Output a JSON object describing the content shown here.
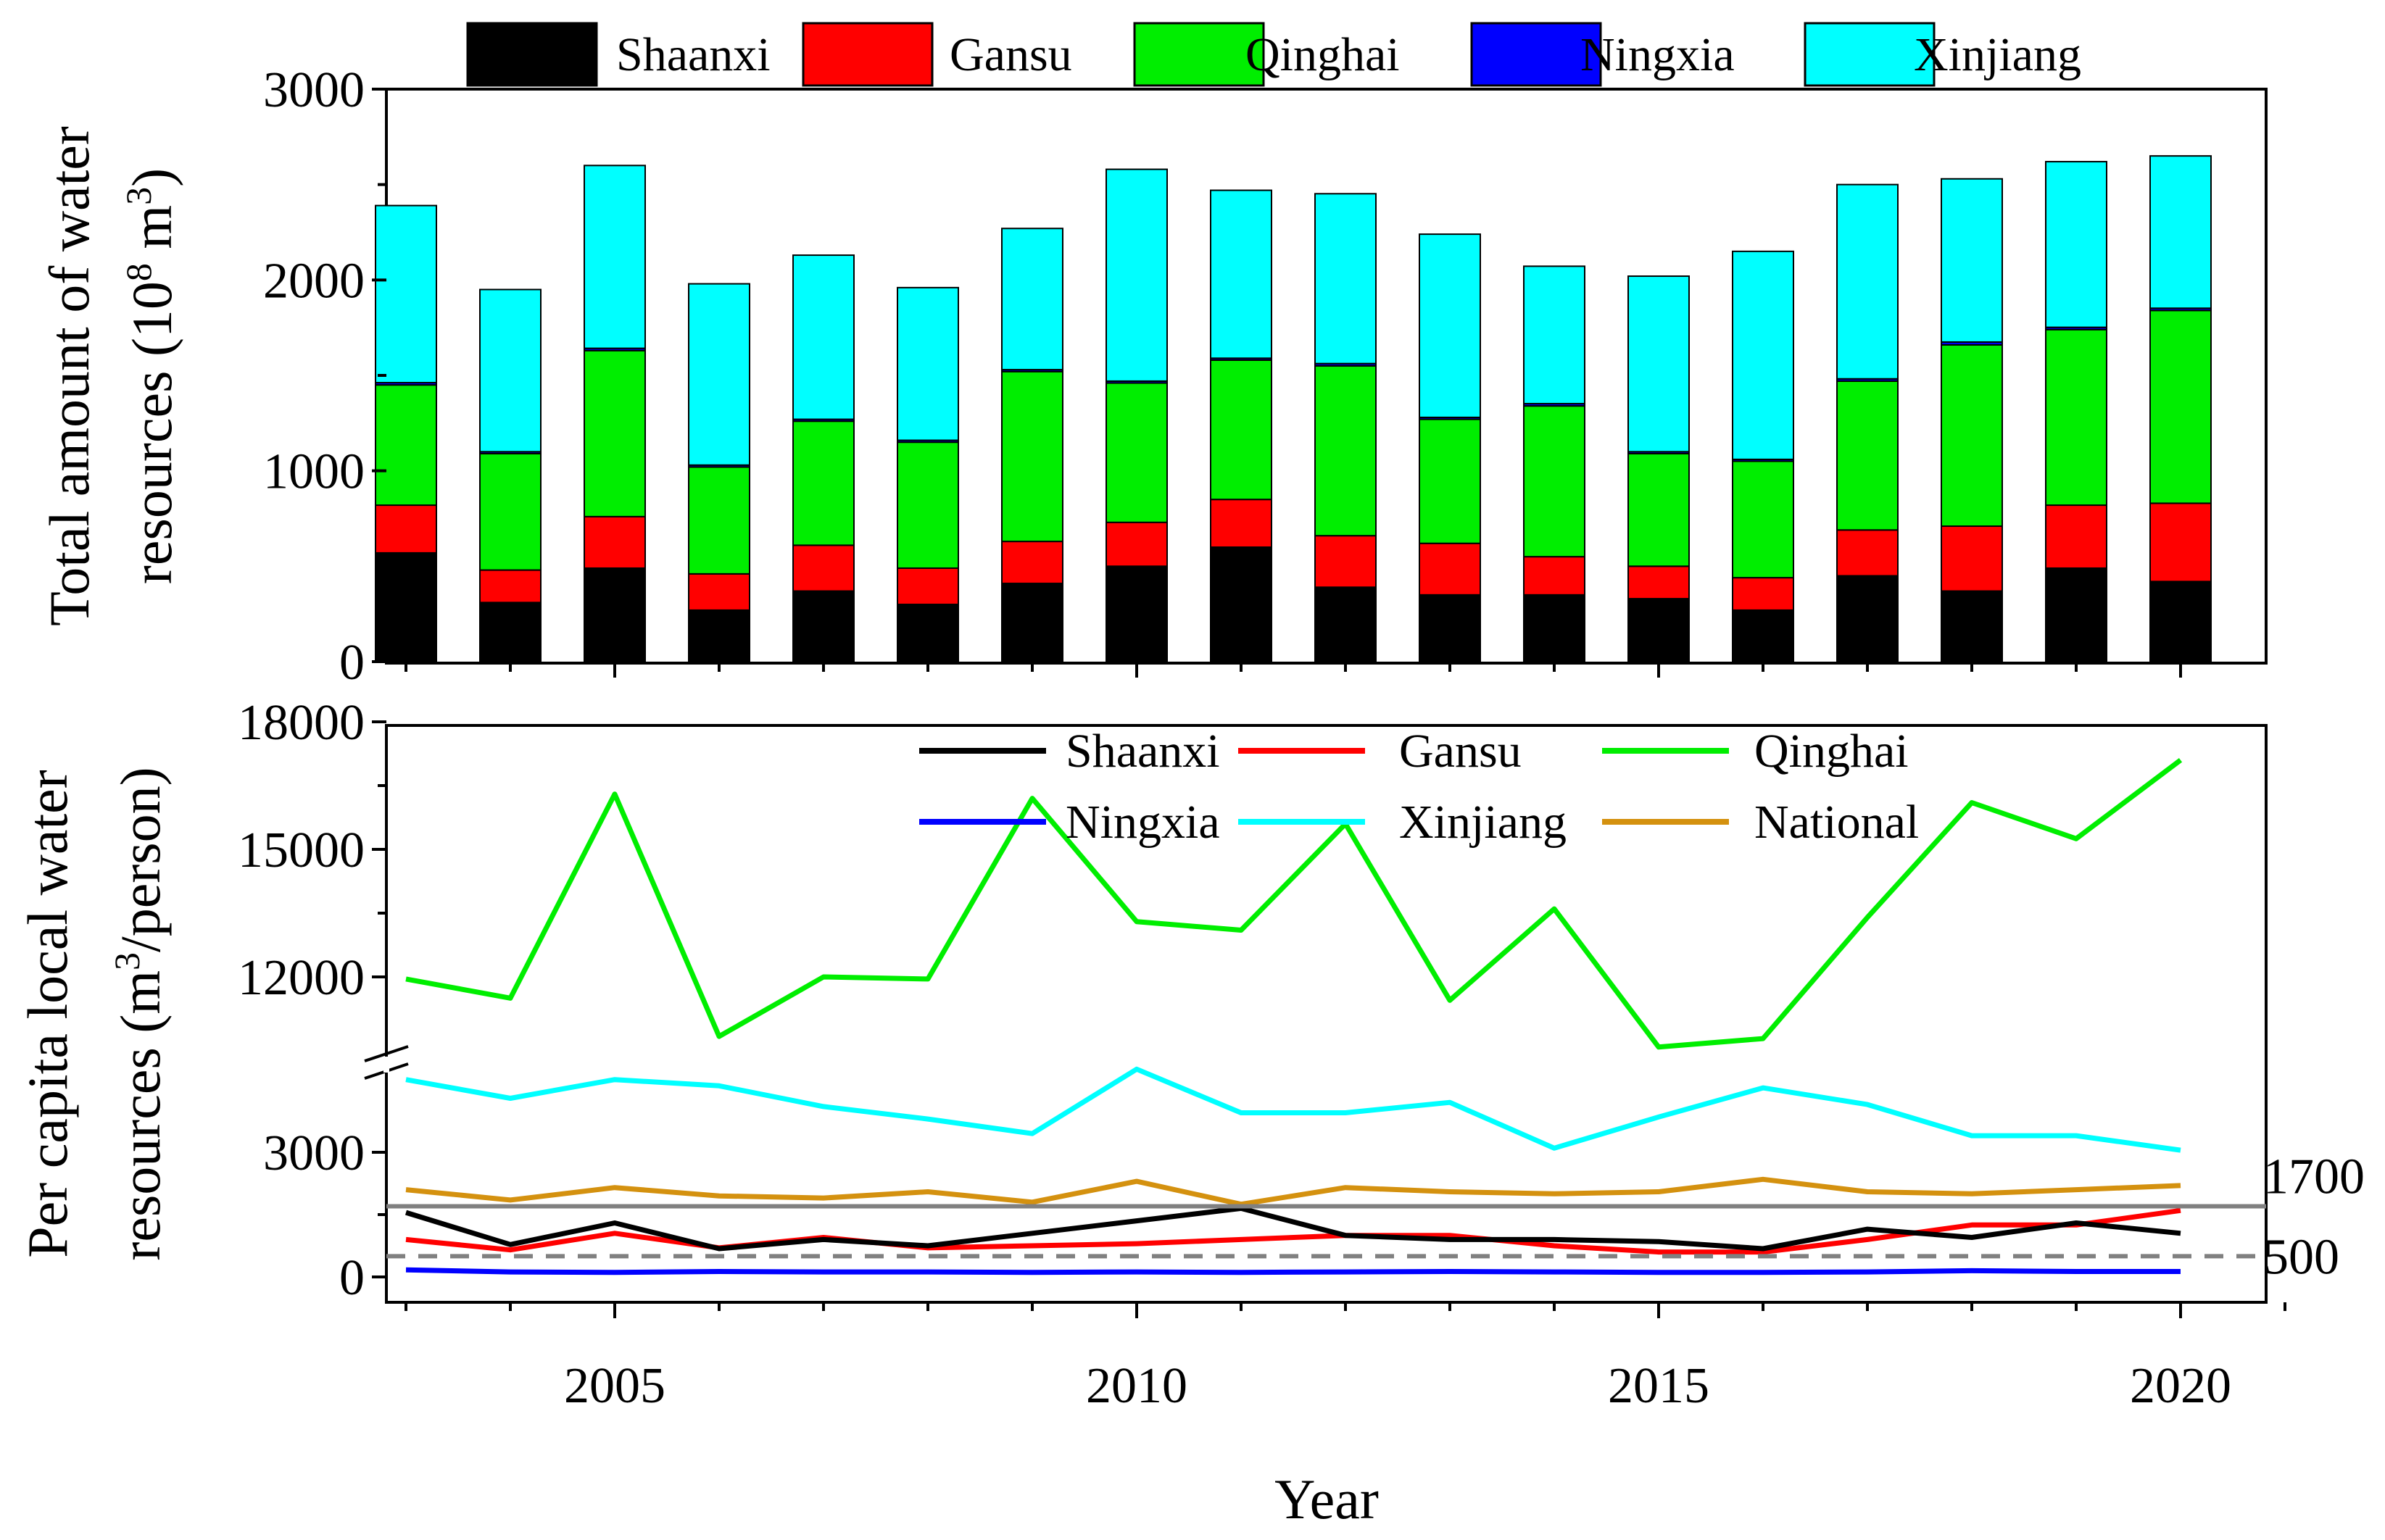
{
  "chart_data": [
    {
      "type": "bar",
      "stacked": true,
      "ylabel_line1": "Total amount of water",
      "ylabel_line2_prefix": "resources (10",
      "ylabel_line2_sup": "8",
      "ylabel_line2_mid": " m",
      "ylabel_line2_sup2": "3",
      "ylabel_line2_suffix": ")",
      "ylim": [
        0,
        3000
      ],
      "yticks": [
        "0",
        "1000",
        "2000",
        "3000"
      ],
      "categories": [
        2003,
        2004,
        2005,
        2006,
        2007,
        2008,
        2009,
        2010,
        2011,
        2012,
        2013,
        2014,
        2015,
        2016,
        2017,
        2018,
        2019,
        2020
      ],
      "legend_position": "top",
      "series": [
        {
          "name": "Shaanxi",
          "color": "#000000",
          "values": [
            570,
            310,
            490,
            270,
            370,
            300,
            410,
            500,
            600,
            390,
            350,
            350,
            330,
            270,
            450,
            370,
            490,
            420
          ]
        },
        {
          "name": "Gansu",
          "color": "#ff0000",
          "values": [
            250,
            170,
            270,
            190,
            240,
            190,
            220,
            230,
            250,
            270,
            270,
            200,
            170,
            170,
            240,
            340,
            330,
            410
          ]
        },
        {
          "name": "Qinghai",
          "color": "#00ee00",
          "values": [
            630,
            610,
            870,
            560,
            650,
            660,
            890,
            730,
            730,
            890,
            650,
            790,
            590,
            610,
            780,
            950,
            920,
            1010
          ]
        },
        {
          "name": "Ningxia",
          "color": "#0000ff",
          "values": [
            12,
            10,
            12,
            10,
            10,
            10,
            10,
            10,
            10,
            12,
            10,
            12,
            10,
            10,
            12,
            15,
            12,
            12
          ]
        },
        {
          "name": "Xinjiang",
          "color": "#00ffff",
          "values": [
            928,
            850,
            958,
            950,
            860,
            800,
            740,
            1110,
            880,
            890,
            960,
            720,
            920,
            1090,
            1018,
            855,
            868,
            798
          ]
        }
      ]
    },
    {
      "type": "line",
      "ylabel_line1": "Per capita local water",
      "ylabel_line2_prefix": "resources (m",
      "ylabel_line2_sup": "3",
      "ylabel_line2_suffix": "/person)",
      "xlabel": "Year",
      "xticks": [
        "2005",
        "2010",
        "2015",
        "2020"
      ],
      "xlim": [
        2002.5,
        2021.5
      ],
      "broken_axis": true,
      "lower_ylim": [
        0,
        5200
      ],
      "upper_ylim": [
        9800,
        18000
      ],
      "yticks": [
        "0",
        "3000",
        "12000",
        "15000",
        "18000"
      ],
      "x": [
        2003,
        2004,
        2005,
        2006,
        2007,
        2008,
        2009,
        2010,
        2011,
        2012,
        2013,
        2014,
        2015,
        2016,
        2017,
        2018,
        2019,
        2020
      ],
      "legend_position": "top",
      "series": [
        {
          "name": "Shaanxi",
          "color": "#000000",
          "values": [
            1550,
            780,
            1300,
            680,
            900,
            750,
            1050,
            1350,
            1650,
            1000,
            900,
            900,
            850,
            680,
            1150,
            950,
            1300,
            1050
          ]
        },
        {
          "name": "Gansu",
          "color": "#ff0000",
          "values": [
            900,
            650,
            1050,
            700,
            950,
            700,
            750,
            800,
            900,
            1000,
            1000,
            750,
            600,
            600,
            900,
            1250,
            1250,
            1600
          ]
        },
        {
          "name": "Qinghai",
          "color": "#00ee00",
          "values": [
            11950,
            11500,
            16300,
            10600,
            12000,
            11950,
            16200,
            13300,
            13100,
            15600,
            11450,
            13600,
            10350,
            10550,
            13400,
            16100,
            15250,
            17100
          ]
        },
        {
          "name": "Ningxia",
          "color": "#0000ff",
          "values": [
            170,
            120,
            110,
            130,
            120,
            120,
            110,
            120,
            110,
            120,
            130,
            120,
            110,
            110,
            120,
            150,
            130,
            130
          ]
        },
        {
          "name": "Xinjiang",
          "color": "#00ffff",
          "values": [
            4750,
            4300,
            4750,
            4600,
            4100,
            3800,
            3450,
            5000,
            3950,
            3950,
            4200,
            3100,
            3850,
            4550,
            4150,
            3400,
            3400,
            3050
          ]
        },
        {
          "name": "National",
          "color": "#d4910f",
          "values": [
            2100,
            1850,
            2150,
            1950,
            1900,
            2050,
            1800,
            2300,
            1750,
            2150,
            2050,
            2000,
            2050,
            2350,
            2050,
            2000,
            2100,
            2200
          ]
        }
      ],
      "reference_lines": [
        {
          "value": 1700,
          "label": "1700",
          "style": "solid",
          "color": "#808080"
        },
        {
          "value": 500,
          "label": "500",
          "style": "dashed",
          "color": "#808080"
        }
      ]
    }
  ]
}
